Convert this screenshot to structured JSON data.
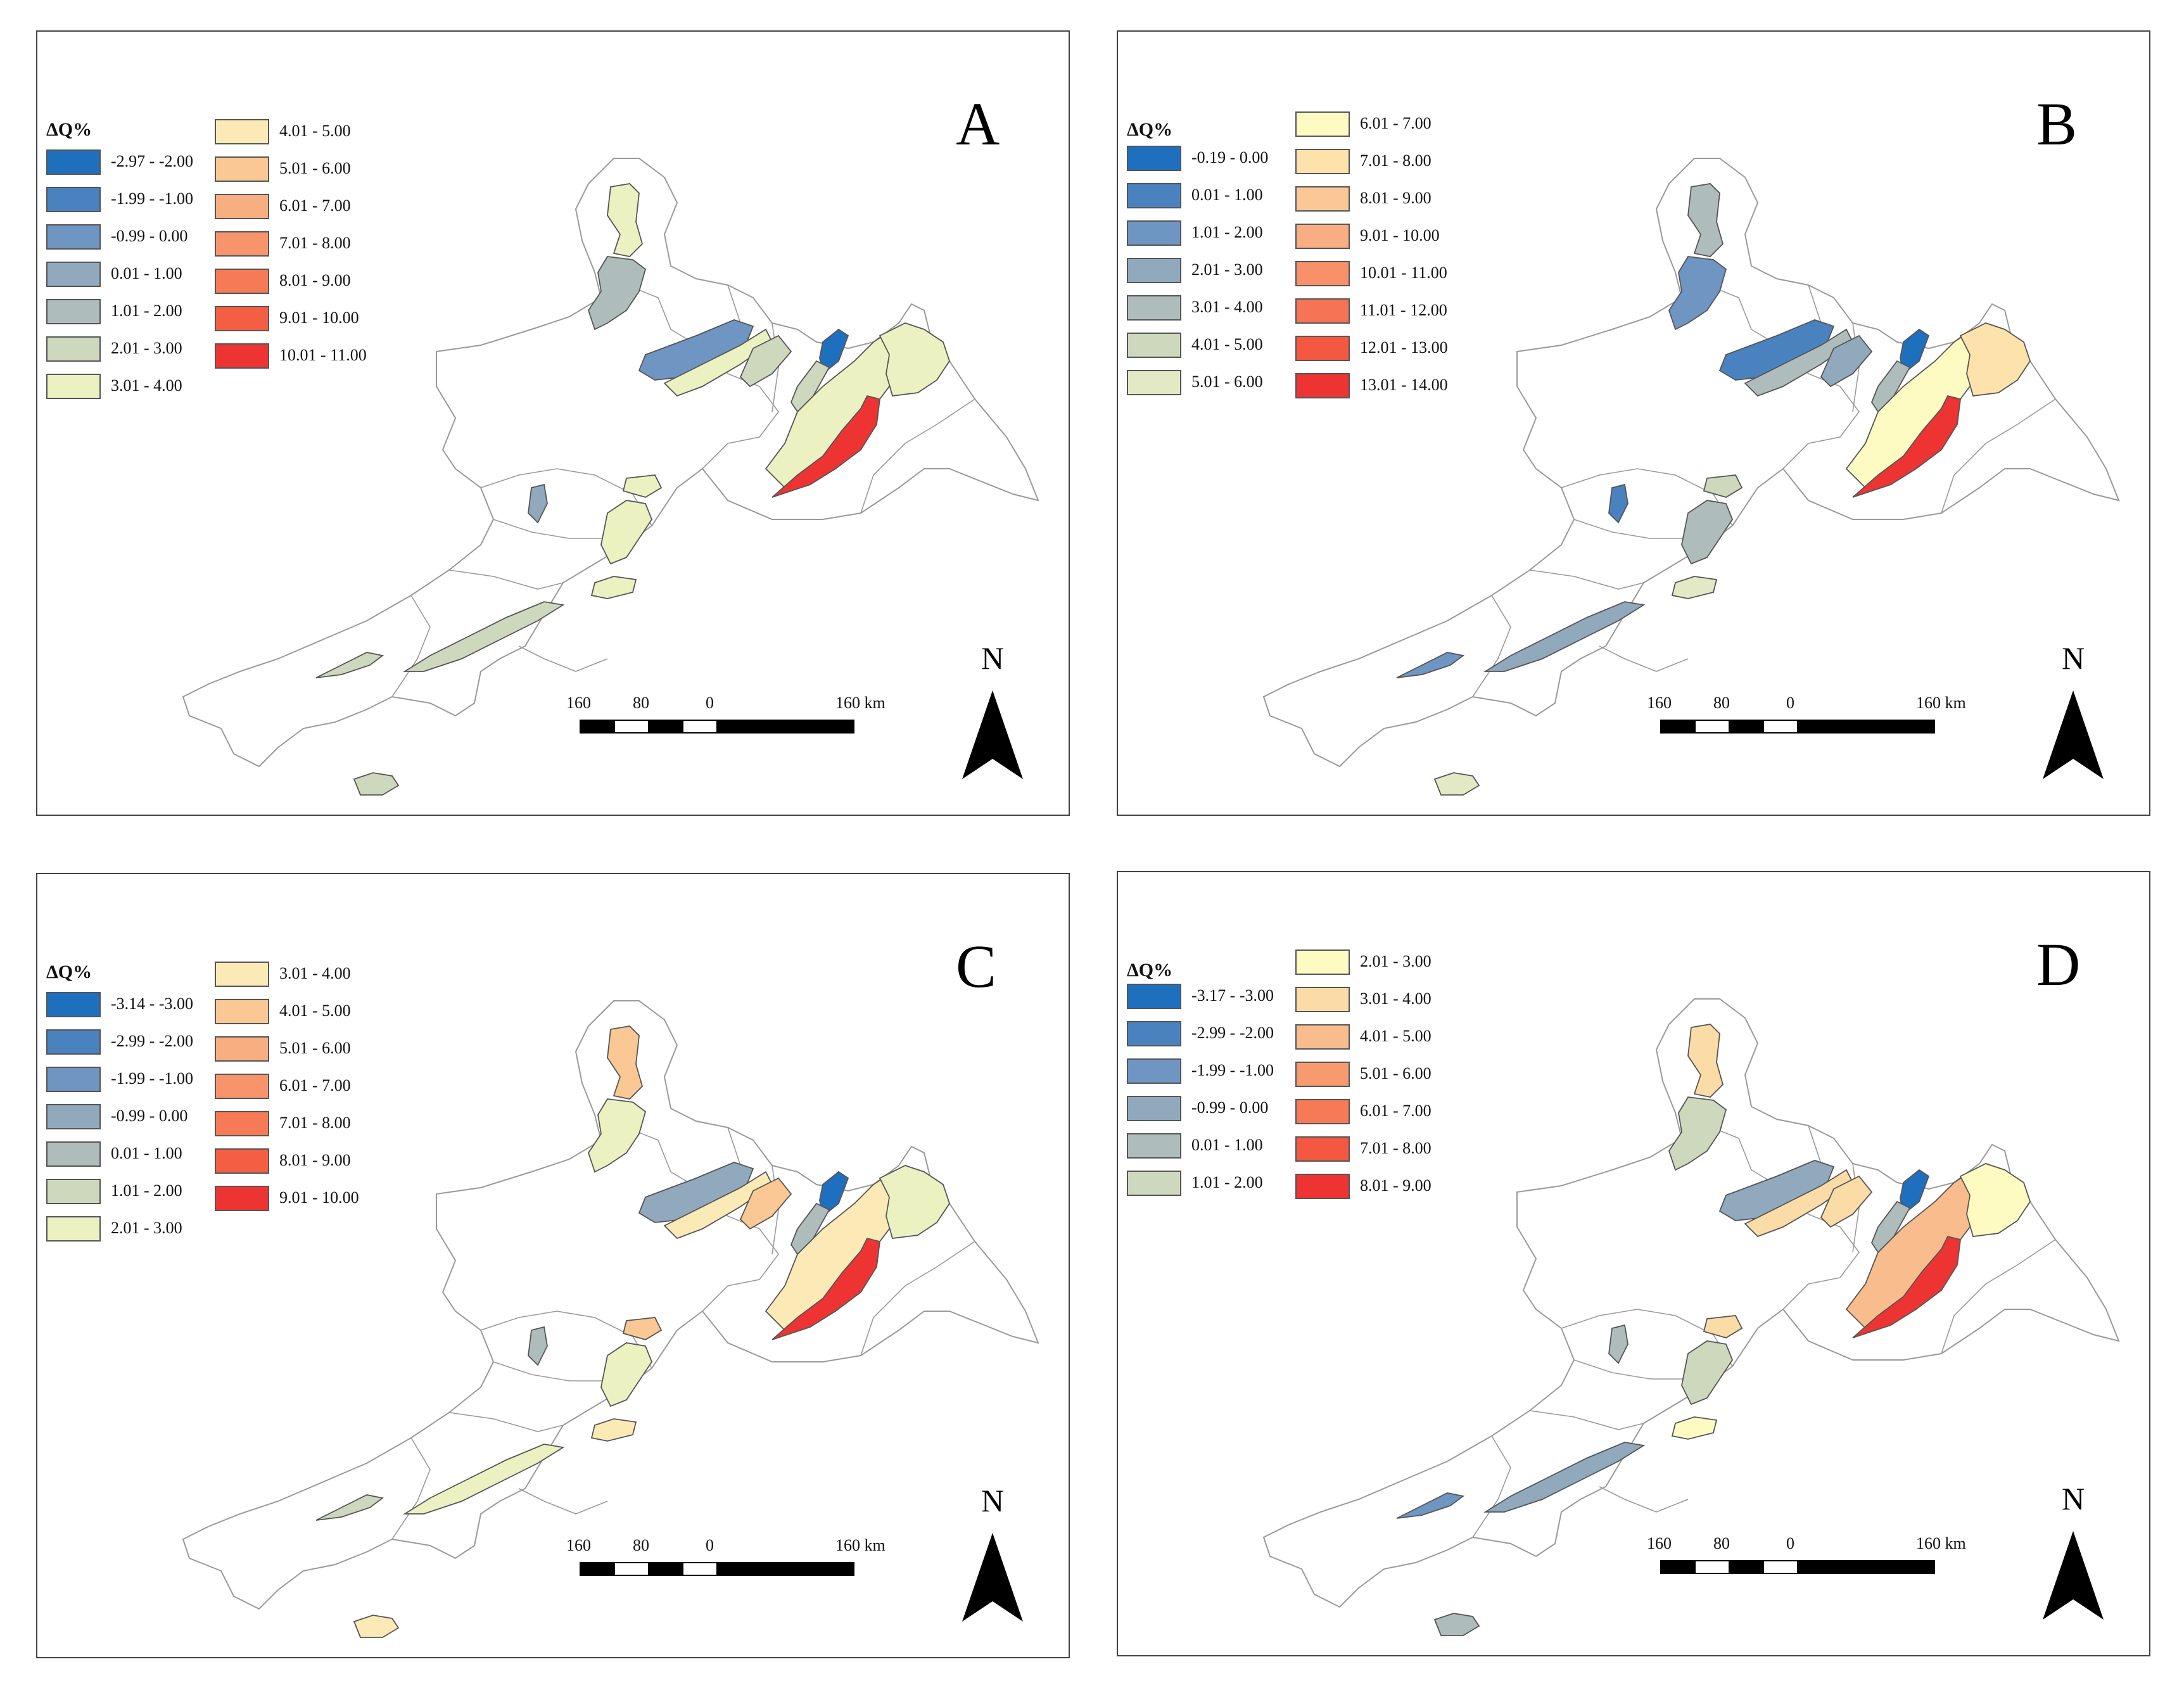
{
  "legend_title": "ΔQ%",
  "north_label": "N",
  "scale_labels": [
    "160",
    "80",
    "0",
    "160 km"
  ],
  "colors": {
    "scale_dark": "#000000",
    "scale_light": "#ffffff",
    "basin_outline": "#9a9a9a",
    "polygon_stroke": "#555555"
  },
  "panels": [
    {
      "id": "A",
      "letter": "A",
      "legend_left": [
        {
          "label": "-2.97 - -2.00",
          "color": "#1f6fbf"
        },
        {
          "label": "-1.99 - -1.00",
          "color": "#4a82c0"
        },
        {
          "label": "-0.99 - 0.00",
          "color": "#6f95c2"
        },
        {
          "label": "0.01 - 1.00",
          "color": "#90a9bd"
        },
        {
          "label": "1.01 - 2.00",
          "color": "#aebdbb"
        },
        {
          "label": "2.01 - 3.00",
          "color": "#cdd8bd"
        },
        {
          "label": "3.01 - 4.00",
          "color": "#ecf1c2"
        }
      ],
      "legend_right": [
        {
          "label": "4.01 - 5.00",
          "color": "#fbeab6"
        },
        {
          "label": "5.01 - 6.00",
          "color": "#f9c894"
        },
        {
          "label": "6.01 - 7.00",
          "color": "#f7ae80"
        },
        {
          "label": "7.01 - 8.00",
          "color": "#f7946c"
        },
        {
          "label": "8.01 - 9.00",
          "color": "#f67a55"
        },
        {
          "label": "9.01 - 10.00",
          "color": "#f45e42"
        },
        {
          "label": "10.01 - 11.00",
          "color": "#ee3432"
        }
      ],
      "fills": {
        "north_top": "#ecf1c2",
        "north_mid": "#aebdbb",
        "central_big": "#6f95c2",
        "central_small": "#ecf1c2",
        "central_b": "#cdd8bd",
        "central_blue": "#1f6fbf",
        "east_long": "#ecf1c2",
        "east_red": "#ee3432",
        "east_side": "#ecf1c2",
        "east_strip": "#cdd8bd",
        "mid_small_w": "#90a9bd",
        "mid_small_e": "#ecf1c2",
        "mid_center": "#ecf1c2",
        "mid_small_s": "#ecf1c2",
        "sw_long1": "#cdd8bd",
        "sw_long2": "#cdd8bd",
        "south_small": "#cdd8bd"
      }
    },
    {
      "id": "B",
      "letter": "B",
      "legend_left": [
        {
          "label": "-0.19 - 0.00",
          "color": "#1f6fbf"
        },
        {
          "label": "0.01 - 1.00",
          "color": "#4a82c0"
        },
        {
          "label": "1.01 - 2.00",
          "color": "#6f95c2"
        },
        {
          "label": "2.01 - 3.00",
          "color": "#90a9bd"
        },
        {
          "label": "3.01 - 4.00",
          "color": "#aebdbb"
        },
        {
          "label": "4.01 - 5.00",
          "color": "#cdd8bd"
        },
        {
          "label": "5.01 - 6.00",
          "color": "#e2e9c4"
        }
      ],
      "legend_right": [
        {
          "label": "6.01 - 7.00",
          "color": "#fdfbc2"
        },
        {
          "label": "7.01 - 8.00",
          "color": "#fde2ab"
        },
        {
          "label": "8.01 - 9.00",
          "color": "#fbc797"
        },
        {
          "label": "9.01 - 10.00",
          "color": "#f9ad82"
        },
        {
          "label": "10.01 - 11.00",
          "color": "#f8906a"
        },
        {
          "label": "11.01 - 12.00",
          "color": "#f67456"
        },
        {
          "label": "12.01 - 13.00",
          "color": "#f45840"
        },
        {
          "label": "13.01 - 14.00",
          "color": "#ee3432"
        }
      ],
      "fills": {
        "north_top": "#aebdbb",
        "north_mid": "#6f95c2",
        "central_big": "#4a82c0",
        "central_small": "#aebdbb",
        "central_b": "#90a9bd",
        "central_blue": "#1f6fbf",
        "east_long": "#fdfbc2",
        "east_red": "#ee3432",
        "east_side": "#fde2ab",
        "east_strip": "#aebdbb",
        "mid_small_w": "#4a82c0",
        "mid_small_e": "#cdd8bd",
        "mid_center": "#aebdbb",
        "mid_small_s": "#e2e9c4",
        "sw_long1": "#6f95c2",
        "sw_long2": "#90a9bd",
        "south_small": "#e2e9c4"
      }
    },
    {
      "id": "C",
      "letter": "C",
      "legend_left": [
        {
          "label": "-3.14 - -3.00",
          "color": "#1f6fbf"
        },
        {
          "label": "-2.99 - -2.00",
          "color": "#4a82c0"
        },
        {
          "label": "-1.99 - -1.00",
          "color": "#6f95c2"
        },
        {
          "label": "-0.99 - 0.00",
          "color": "#90a9bd"
        },
        {
          "label": "0.01 - 1.00",
          "color": "#aebdbb"
        },
        {
          "label": "1.01 - 2.00",
          "color": "#cdd8bd"
        },
        {
          "label": "2.01 - 3.00",
          "color": "#ecf1c2"
        }
      ],
      "legend_right": [
        {
          "label": "3.01 - 4.00",
          "color": "#fbeab6"
        },
        {
          "label": "4.01 - 5.00",
          "color": "#f9c894"
        },
        {
          "label": "5.01 - 6.00",
          "color": "#f7ae80"
        },
        {
          "label": "6.01 - 7.00",
          "color": "#f7946c"
        },
        {
          "label": "7.01 - 8.00",
          "color": "#f67a55"
        },
        {
          "label": "8.01 - 9.00",
          "color": "#f45e42"
        },
        {
          "label": "9.01 - 10.00",
          "color": "#ee3432"
        }
      ],
      "fills": {
        "north_top": "#f9c894",
        "north_mid": "#ecf1c2",
        "central_big": "#90a9bd",
        "central_small": "#fbeab6",
        "central_b": "#f9c894",
        "central_blue": "#1f6fbf",
        "east_long": "#fbeab6",
        "east_red": "#ee3432",
        "east_side": "#ecf1c2",
        "east_strip": "#aebdbb",
        "mid_small_w": "#aebdbb",
        "mid_small_e": "#f9c894",
        "mid_center": "#ecf1c2",
        "mid_small_s": "#fbeab6",
        "sw_long1": "#cdd8bd",
        "sw_long2": "#ecf1c2",
        "south_small": "#fbeab6"
      }
    },
    {
      "id": "D",
      "letter": "D",
      "legend_left": [
        {
          "label": "-3.17 - -3.00",
          "color": "#1f6fbf"
        },
        {
          "label": "-2.99 - -2.00",
          "color": "#4a82c0"
        },
        {
          "label": "-1.99 - -1.00",
          "color": "#6f95c2"
        },
        {
          "label": "-0.99 - 0.00",
          "color": "#90a9bd"
        },
        {
          "label": "0.01 - 1.00",
          "color": "#aebdbb"
        },
        {
          "label": "1.01 - 2.00",
          "color": "#cdd8bd"
        }
      ],
      "legend_right": [
        {
          "label": "2.01 - 3.00",
          "color": "#fdfbc2"
        },
        {
          "label": "3.01 - 4.00",
          "color": "#fbdca6"
        },
        {
          "label": "4.01 - 5.00",
          "color": "#f9bd8d"
        },
        {
          "label": "5.01 - 6.00",
          "color": "#f89a70"
        },
        {
          "label": "6.01 - 7.00",
          "color": "#f67a55"
        },
        {
          "label": "7.01 - 8.00",
          "color": "#f45840"
        },
        {
          "label": "8.01 - 9.00",
          "color": "#ee3432"
        }
      ],
      "fills": {
        "north_top": "#fbdca6",
        "north_mid": "#cdd8bd",
        "central_big": "#90a9bd",
        "central_small": "#fbdca6",
        "central_b": "#fbdca6",
        "central_blue": "#1f6fbf",
        "east_long": "#f9bd8d",
        "east_red": "#ee3432",
        "east_side": "#fdfbc2",
        "east_strip": "#aebdbb",
        "mid_small_w": "#aebdbb",
        "mid_small_e": "#fbdca6",
        "mid_center": "#cdd8bd",
        "mid_small_s": "#fdfbc2",
        "sw_long1": "#6f95c2",
        "sw_long2": "#90a9bd",
        "south_small": "#aebdbb"
      }
    }
  ]
}
